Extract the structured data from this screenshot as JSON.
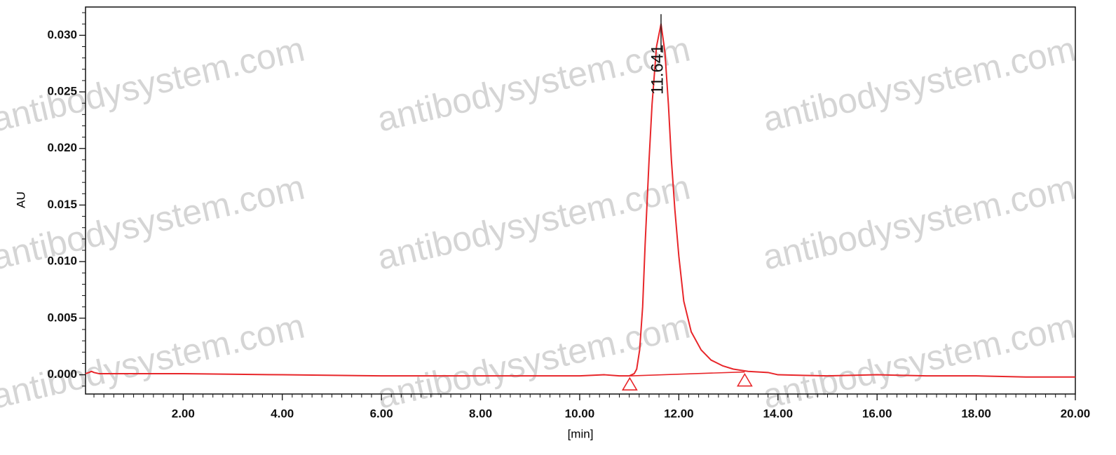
{
  "chart_data": {
    "type": "line",
    "watermark": "antibodysystem.com",
    "xlabel": "[min]",
    "ylabel": "AU",
    "xlim": [
      0.03,
      20
    ],
    "ylim": [
      -0.0017,
      0.0325
    ],
    "xticks": [
      {
        "value": 2,
        "label": "2.00"
      },
      {
        "value": 4,
        "label": "4.00"
      },
      {
        "value": 6,
        "label": "6.00"
      },
      {
        "value": 8,
        "label": "8.00"
      },
      {
        "value": 10,
        "label": "10.00"
      },
      {
        "value": 12,
        "label": "12.00"
      },
      {
        "value": 14,
        "label": "14.00"
      },
      {
        "value": 16,
        "label": "16.00"
      },
      {
        "value": 18,
        "label": "18.00"
      },
      {
        "value": 20,
        "label": "20.00"
      }
    ],
    "yticks": [
      {
        "value": 0,
        "label": "0.000"
      },
      {
        "value": 0.005,
        "label": "0.005"
      },
      {
        "value": 0.01,
        "label": "0.010"
      },
      {
        "value": 0.015,
        "label": "0.015"
      },
      {
        "value": 0.02,
        "label": "0.020"
      },
      {
        "value": 0.025,
        "label": "0.025"
      },
      {
        "value": 0.03,
        "label": "0.030"
      }
    ],
    "x": [
      0.03,
      0.1,
      0.15,
      0.2,
      0.3,
      0.5,
      1,
      2,
      4,
      6,
      8,
      9,
      10,
      10.5,
      10.8,
      11.0,
      11.1,
      11.15,
      11.21,
      11.27,
      11.32,
      11.4,
      11.46,
      11.55,
      11.641,
      11.72,
      11.79,
      11.85,
      11.92,
      12.0,
      12.1,
      12.25,
      12.45,
      12.65,
      12.88,
      13.1,
      13.4,
      13.8,
      14,
      15,
      16,
      17,
      18,
      19,
      20
    ],
    "series": [
      {
        "color": "#e8262a",
        "values": [
          0.0001,
          0.0002,
          0.0003,
          0.0002,
          0.0001,
          0.0001,
          0.0001,
          0.0001,
          0.0,
          -0.0001,
          -0.0001,
          -0.0001,
          -0.0001,
          0.0,
          -0.0001,
          -0.0001,
          0.0001,
          0.0005,
          0.0022,
          0.006,
          0.0115,
          0.019,
          0.0239,
          0.029,
          0.031,
          0.0285,
          0.0239,
          0.019,
          0.0146,
          0.0105,
          0.0065,
          0.0038,
          0.0022,
          0.0013,
          0.0008,
          0.0005,
          0.0003,
          0.0002,
          0.0,
          -0.0001,
          0.0,
          -0.0001,
          -0.0001,
          -0.0002,
          -0.0002
        ]
      }
    ],
    "baseline": {
      "color": "#e8262a",
      "x": [
        11.01,
        13.33
      ],
      "values": [
        -0.0001,
        0.00025
      ]
    },
    "annotation": {
      "text": "11.641",
      "x": 11.641,
      "y": 0.031
    }
  }
}
